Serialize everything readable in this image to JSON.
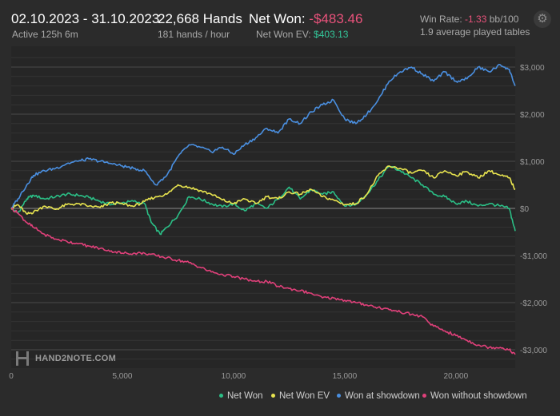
{
  "header": {
    "date_range": "02.10.2023 - 31.10.2023",
    "active": "Active 125h 6m",
    "hands": "22,668 Hands",
    "hands_per_hour": "181 hands / hour",
    "net_won_label": "Net Won:",
    "net_won_value": "-$483.46",
    "net_won_ev_label": "Net Won  EV:",
    "net_won_ev_value": "$403.13",
    "win_rate_label": "Win Rate:",
    "win_rate_value": "-1.33",
    "win_rate_unit": "bb/100",
    "avg_tables": "1.9 average played tables",
    "settings_icon": "gear-icon"
  },
  "logo": {
    "text": "HAND2NOTE.COM"
  },
  "chart_data": {
    "type": "line",
    "xlim": [
      0,
      22668
    ],
    "ylim": [
      -3000,
      3000
    ],
    "x_ticks": [
      0,
      5000,
      10000,
      15000,
      20000
    ],
    "x_tick_labels": [
      "0",
      "5,000",
      "10,000",
      "15,000",
      "20,000"
    ],
    "y_ticks": [
      3000,
      2000,
      1000,
      0,
      -1000,
      -2000,
      -3000
    ],
    "y_tick_labels": [
      "$3,000",
      "$2,000",
      "$1,000",
      "$0",
      "-$1,000",
      "-$2,000",
      "-$3,000"
    ],
    "grid": true,
    "legend_position": "bottom-right",
    "series": [
      {
        "name": "Net Won",
        "color": "#2bbf86",
        "x": [
          0,
          300,
          700,
          1000,
          1500,
          2000,
          2500,
          3000,
          3500,
          4000,
          4500,
          5000,
          5500,
          6000,
          6300,
          6700,
          7000,
          7500,
          8000,
          8500,
          9000,
          9500,
          10000,
          10500,
          11000,
          11500,
          12000,
          12500,
          13000,
          13500,
          14000,
          14500,
          15000,
          15500,
          16000,
          16500,
          17000,
          17500,
          18000,
          18500,
          19000,
          19500,
          20000,
          20500,
          21000,
          21500,
          22000,
          22400,
          22668
        ],
        "y": [
          0,
          -100,
          200,
          280,
          200,
          250,
          300,
          280,
          230,
          150,
          80,
          120,
          150,
          100,
          -300,
          -550,
          -400,
          -150,
          250,
          200,
          100,
          30,
          100,
          -50,
          100,
          0,
          200,
          450,
          200,
          400,
          300,
          350,
          50,
          80,
          300,
          600,
          900,
          800,
          650,
          500,
          300,
          250,
          100,
          150,
          50,
          100,
          50,
          0,
          -480
        ]
      },
      {
        "name": "Net Won  EV",
        "color": "#e8e44f",
        "x": [
          0,
          300,
          700,
          1000,
          1500,
          2000,
          2500,
          3000,
          3500,
          4000,
          4500,
          5000,
          5500,
          6000,
          6500,
          7000,
          7500,
          8000,
          8500,
          9000,
          9500,
          10000,
          10500,
          11000,
          11500,
          12000,
          12500,
          13000,
          13500,
          14000,
          14500,
          15000,
          15500,
          16000,
          16500,
          17000,
          17500,
          18000,
          18500,
          19000,
          19500,
          20000,
          20500,
          21000,
          21500,
          22000,
          22400,
          22668
        ],
        "y": [
          0,
          80,
          -120,
          -80,
          50,
          -20,
          80,
          100,
          50,
          20,
          120,
          100,
          40,
          150,
          250,
          300,
          500,
          450,
          380,
          300,
          180,
          100,
          200,
          100,
          250,
          200,
          350,
          300,
          400,
          250,
          180,
          80,
          100,
          300,
          700,
          900,
          850,
          750,
          800,
          650,
          800,
          700,
          780,
          650,
          800,
          700,
          650,
          400
        ]
      },
      {
        "name": "Won at showdown",
        "color": "#4a8fe0",
        "x": [
          0,
          300,
          700,
          1000,
          1500,
          2000,
          2500,
          3000,
          3500,
          4000,
          4500,
          5000,
          5500,
          6000,
          6500,
          7000,
          7500,
          8000,
          8500,
          9000,
          9500,
          10000,
          10500,
          11000,
          11500,
          12000,
          12500,
          13000,
          13500,
          14000,
          14500,
          15000,
          15500,
          16000,
          16500,
          17000,
          17500,
          18000,
          18500,
          19000,
          19500,
          20000,
          20500,
          21000,
          21500,
          22000,
          22400,
          22668
        ],
        "y": [
          0,
          200,
          500,
          700,
          800,
          850,
          950,
          1000,
          1050,
          1000,
          950,
          900,
          850,
          800,
          500,
          700,
          1100,
          1350,
          1300,
          1200,
          1300,
          1150,
          1350,
          1500,
          1700,
          1600,
          1900,
          1800,
          2050,
          2200,
          2300,
          1900,
          1800,
          2000,
          2300,
          2700,
          2900,
          3000,
          2850,
          2700,
          2900,
          2700,
          2750,
          3000,
          2900,
          3050,
          2950,
          2600
        ]
      },
      {
        "name": "Won without showdown",
        "color": "#e0407a",
        "x": [
          0,
          300,
          700,
          1000,
          1500,
          2000,
          2500,
          3000,
          3500,
          4000,
          4500,
          5000,
          5500,
          6000,
          6500,
          7000,
          7500,
          8000,
          8500,
          9000,
          9500,
          10000,
          10500,
          11000,
          11500,
          12000,
          12500,
          13000,
          13500,
          14000,
          14500,
          15000,
          15500,
          16000,
          16500,
          17000,
          17500,
          18000,
          18500,
          19000,
          19500,
          20000,
          20500,
          21000,
          21500,
          22000,
          22400,
          22668
        ],
        "y": [
          0,
          -100,
          -300,
          -400,
          -550,
          -650,
          -700,
          -750,
          -800,
          -850,
          -900,
          -950,
          -950,
          -950,
          -1000,
          -1050,
          -1100,
          -1150,
          -1250,
          -1350,
          -1400,
          -1450,
          -1500,
          -1550,
          -1550,
          -1650,
          -1700,
          -1750,
          -1800,
          -1900,
          -1900,
          -1950,
          -2000,
          -2050,
          -2100,
          -2150,
          -2200,
          -2250,
          -2300,
          -2500,
          -2600,
          -2700,
          -2800,
          -2900,
          -2950,
          -2950,
          -3000,
          -3100
        ]
      }
    ]
  }
}
